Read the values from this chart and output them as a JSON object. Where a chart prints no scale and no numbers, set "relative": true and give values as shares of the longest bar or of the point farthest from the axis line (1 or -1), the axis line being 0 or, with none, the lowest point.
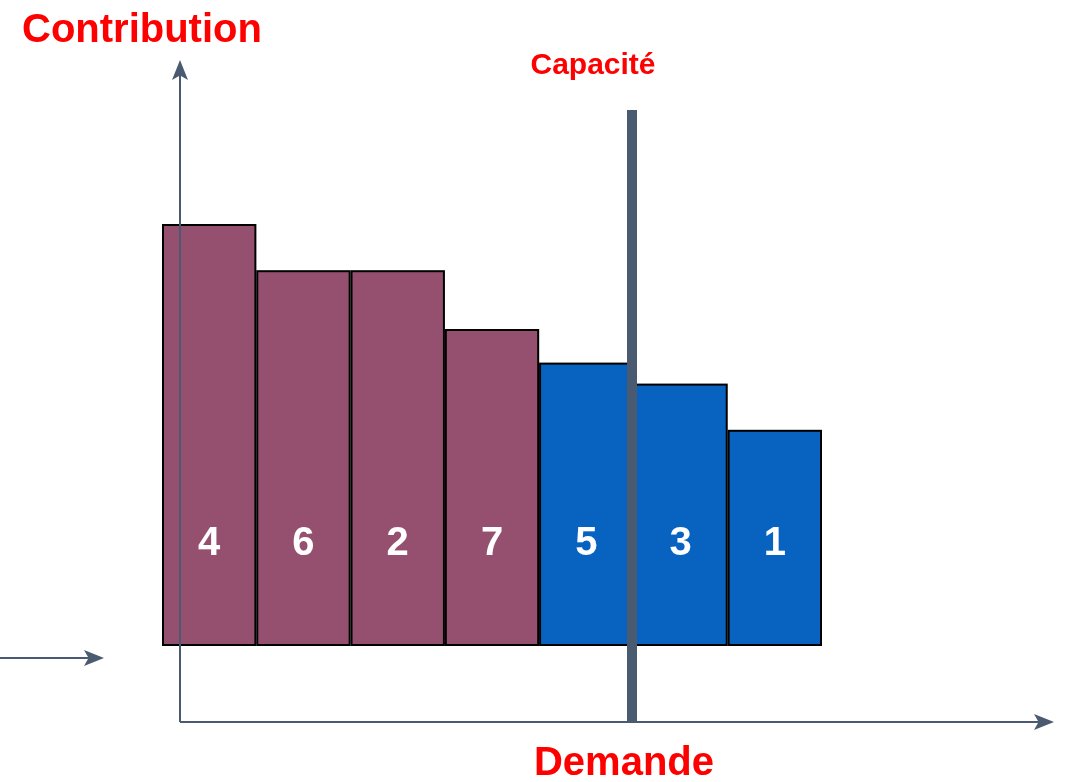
{
  "chart_data": {
    "type": "bar",
    "relative": true,
    "xlabel": "Demande",
    "ylabel": "Contribution",
    "categories": [
      "4",
      "6",
      "2",
      "7",
      "5",
      "3",
      "1"
    ],
    "values": [
      1,
      0.89,
      0.89,
      0.75,
      0.67,
      0.62,
      0.51
    ],
    "colors": [
      "#96506f",
      "#96506f",
      "#96506f",
      "#96506f",
      "#0762c0",
      "#0762c0",
      "#0762c0"
    ],
    "annotations": [
      "Capacité"
    ]
  }
}
